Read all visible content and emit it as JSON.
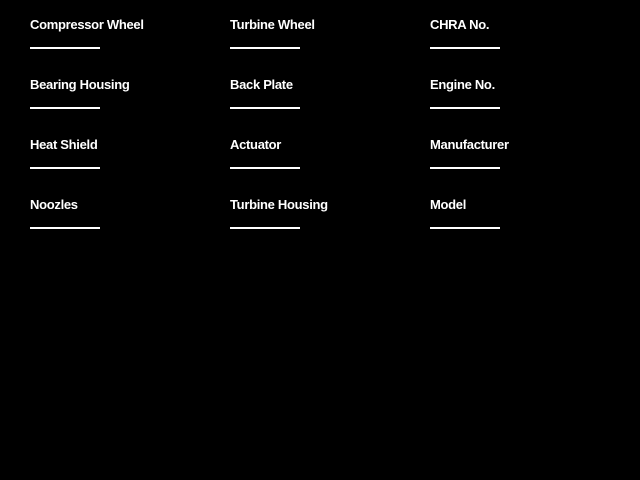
{
  "app": {
    "background_color": "#000000",
    "text_color": "#ffffff",
    "underline_color": "#ffffff"
  },
  "form": {
    "fields": [
      {
        "label": "Compressor Wheel",
        "value": ""
      },
      {
        "label": "Turbine Wheel",
        "value": ""
      },
      {
        "label": "CHRA No.",
        "value": ""
      },
      {
        "label": "Bearing Housing",
        "value": ""
      },
      {
        "label": "Back Plate",
        "value": ""
      },
      {
        "label": "Engine No.",
        "value": ""
      },
      {
        "label": "Heat Shield",
        "value": ""
      },
      {
        "label": "Actuator",
        "value": ""
      },
      {
        "label": "Manufacturer",
        "value": ""
      },
      {
        "label": "Noozles",
        "value": ""
      },
      {
        "label": "Turbine Housing",
        "value": ""
      },
      {
        "label": "Model",
        "value": ""
      }
    ]
  }
}
